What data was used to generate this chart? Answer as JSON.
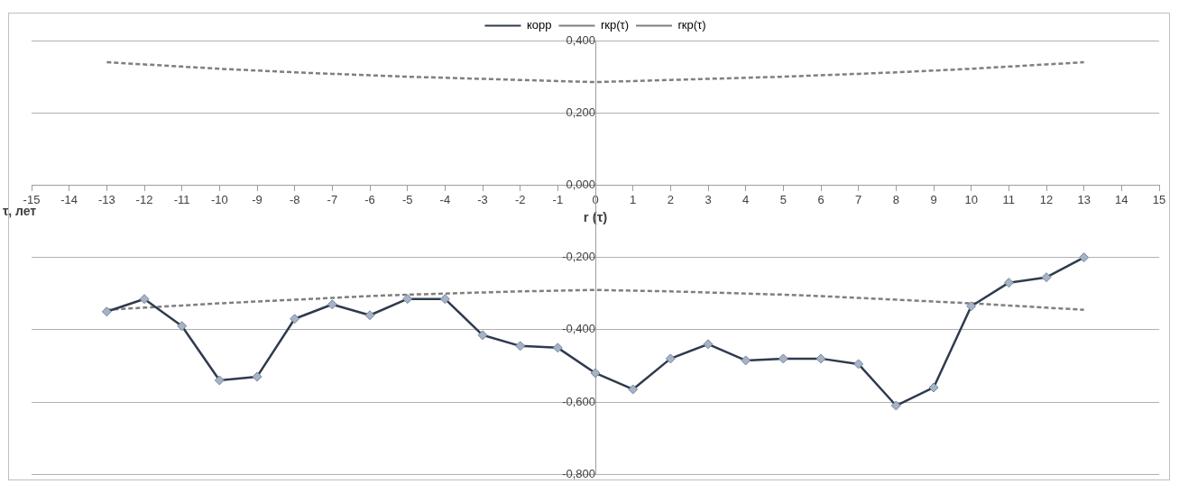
{
  "chart_data": {
    "type": "line",
    "xlabel": "r (τ)",
    "ylabel": "τ, лет",
    "x": [
      -13,
      -12,
      -11,
      -10,
      -9,
      -8,
      -7,
      -6,
      -5,
      -4,
      -3,
      -2,
      -1,
      0,
      1,
      2,
      3,
      4,
      5,
      6,
      7,
      8,
      9,
      10,
      11,
      12,
      13
    ],
    "series": [
      {
        "name": "корр",
        "color": "#2e3b4e",
        "marker": "diamond",
        "line_style": "solid",
        "values": [
          -0.35,
          -0.315,
          -0.39,
          -0.54,
          -0.53,
          -0.37,
          -0.33,
          -0.36,
          -0.315,
          -0.315,
          -0.415,
          -0.445,
          -0.45,
          -0.52,
          -0.565,
          -0.48,
          -0.44,
          -0.485,
          -0.48,
          -0.48,
          -0.495,
          -0.61,
          -0.56,
          -0.335,
          -0.27,
          -0.255,
          -0.2
        ]
      },
      {
        "name": "rкр(τ)",
        "color": "#7f7f7f",
        "marker": "none",
        "line_style": "dashed",
        "values": [
          0.34,
          0.334,
          0.328,
          0.322,
          0.317,
          0.312,
          0.308,
          0.304,
          0.3,
          0.297,
          0.294,
          0.291,
          0.288,
          0.285,
          0.288,
          0.291,
          0.294,
          0.297,
          0.3,
          0.304,
          0.308,
          0.312,
          0.317,
          0.322,
          0.328,
          0.334,
          0.34
        ]
      },
      {
        "name": "rкр(τ)",
        "color": "#7f7f7f",
        "marker": "none",
        "line_style": "dashed",
        "values": [
          -0.345,
          -0.339,
          -0.333,
          -0.327,
          -0.322,
          -0.317,
          -0.312,
          -0.307,
          -0.303,
          -0.3,
          -0.297,
          -0.294,
          -0.292,
          -0.29,
          -0.292,
          -0.294,
          -0.297,
          -0.3,
          -0.303,
          -0.307,
          -0.312,
          -0.317,
          -0.322,
          -0.327,
          -0.333,
          -0.339,
          -0.345
        ]
      }
    ],
    "xlim": [
      -15,
      15
    ],
    "xticks": [
      -15,
      -14,
      -13,
      -12,
      -11,
      -10,
      -9,
      -8,
      -7,
      -6,
      -5,
      -4,
      -3,
      -2,
      -1,
      0,
      1,
      2,
      3,
      4,
      5,
      6,
      7,
      8,
      9,
      10,
      11,
      12,
      13,
      14,
      15
    ],
    "ylim": [
      -0.8,
      0.4
    ],
    "yticks": [
      {
        "value": -0.8,
        "label": "-0,800"
      },
      {
        "value": -0.6,
        "label": "-0,600"
      },
      {
        "value": -0.4,
        "label": "-0,400"
      },
      {
        "value": -0.2,
        "label": "-0,200"
      },
      {
        "value": 0,
        "label": "0,000"
      },
      {
        "value": 0.2,
        "label": "0,200"
      },
      {
        "value": 0.4,
        "label": "0,400"
      }
    ],
    "grid": "y",
    "legend": "top"
  }
}
